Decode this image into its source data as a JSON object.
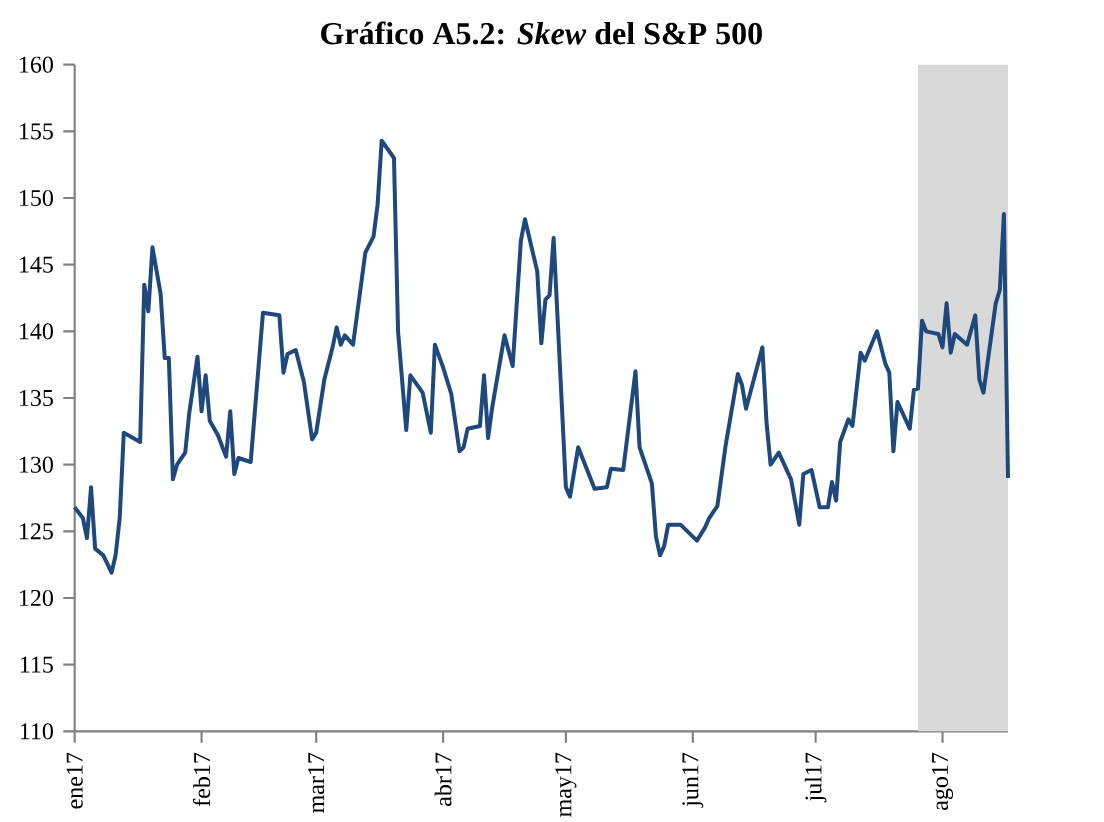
{
  "chart_data": {
    "type": "line",
    "title": "Gráfico A5.2: *Skew* del S&P 500",
    "x": [
      "2017-01-01",
      "2017-01-03",
      "2017-01-04",
      "2017-01-05",
      "2017-01-06",
      "2017-01-08",
      "2017-01-10",
      "2017-01-11",
      "2017-01-12",
      "2017-01-13",
      "2017-01-17",
      "2017-01-18",
      "2017-01-19",
      "2017-01-20",
      "2017-01-22",
      "2017-01-23",
      "2017-01-24",
      "2017-01-25",
      "2017-01-26",
      "2017-01-28",
      "2017-01-29",
      "2017-01-31",
      "2017-02-01",
      "2017-02-02",
      "2017-02-03",
      "2017-02-05",
      "2017-02-07",
      "2017-02-08",
      "2017-02-09",
      "2017-02-10",
      "2017-02-13",
      "2017-02-16",
      "2017-02-20",
      "2017-02-21",
      "2017-02-22",
      "2017-02-24",
      "2017-02-26",
      "2017-02-28",
      "2017-03-01",
      "2017-03-03",
      "2017-03-05",
      "2017-03-06",
      "2017-03-07",
      "2017-03-08",
      "2017-03-10",
      "2017-03-13",
      "2017-03-15",
      "2017-03-16",
      "2017-03-17",
      "2017-03-20",
      "2017-03-21",
      "2017-03-23",
      "2017-03-24",
      "2017-03-27",
      "2017-03-29",
      "2017-03-30",
      "2017-04-01",
      "2017-04-03",
      "2017-04-05",
      "2017-04-06",
      "2017-04-07",
      "2017-04-10",
      "2017-04-11",
      "2017-04-12",
      "2017-04-13",
      "2017-04-16",
      "2017-04-18",
      "2017-04-20",
      "2017-04-21",
      "2017-04-24",
      "2017-04-25",
      "2017-04-26",
      "2017-04-27",
      "2017-04-28",
      "2017-05-01",
      "2017-05-02",
      "2017-05-04",
      "2017-05-08",
      "2017-05-11",
      "2017-05-12",
      "2017-05-15",
      "2017-05-18",
      "2017-05-19",
      "2017-05-22",
      "2017-05-23",
      "2017-05-24",
      "2017-05-25",
      "2017-05-26",
      "2017-05-28",
      "2017-05-29",
      "2017-06-02",
      "2017-06-04",
      "2017-06-05",
      "2017-06-07",
      "2017-06-09",
      "2017-06-12",
      "2017-06-13",
      "2017-06-14",
      "2017-06-18",
      "2017-06-19",
      "2017-06-20",
      "2017-06-22",
      "2017-06-25",
      "2017-06-27",
      "2017-06-28",
      "2017-06-30",
      "2017-07-02",
      "2017-07-04",
      "2017-07-05",
      "2017-07-06",
      "2017-07-07",
      "2017-07-09",
      "2017-07-10",
      "2017-07-12",
      "2017-07-13",
      "2017-07-16",
      "2017-07-18",
      "2017-07-19",
      "2017-07-20",
      "2017-07-21",
      "2017-07-24",
      "2017-07-25",
      "2017-07-26",
      "2017-07-27",
      "2017-07-28",
      "2017-07-31",
      "2017-08-01",
      "2017-08-02",
      "2017-08-03",
      "2017-08-04",
      "2017-08-07",
      "2017-08-09",
      "2017-08-10",
      "2017-08-11",
      "2017-08-14",
      "2017-08-15",
      "2017-08-16",
      "2017-08-17"
    ],
    "series": [
      {
        "color": "#1f497d",
        "values": [
          126.8,
          126,
          124.5,
          128.3,
          123.7,
          123.2,
          121.9,
          123.2,
          126,
          132.4,
          131.7,
          143.5,
          141.5,
          146.3,
          142.8,
          138,
          138,
          128.9,
          130,
          130.9,
          133.9,
          138.1,
          134,
          136.7,
          133.3,
          132.2,
          130.6,
          134,
          129.3,
          130.5,
          130.2,
          141.4,
          141.2,
          136.9,
          138.3,
          138.6,
          136.2,
          131.9,
          132.4,
          136.4,
          138.8,
          140.3,
          139,
          139.7,
          139,
          145.9,
          147.1,
          149.5,
          154.3,
          153,
          140,
          132.6,
          136.7,
          135.4,
          132.4,
          139,
          137.3,
          135.3,
          131,
          131.3,
          132.7,
          132.9,
          136.7,
          132,
          134.3,
          139.7,
          137.4,
          146.8,
          148.4,
          144.5,
          139.1,
          142.4,
          142.7,
          147,
          128.3,
          127.6,
          131.3,
          128.2,
          128.3,
          129.7,
          129.6,
          137,
          131.3,
          128.6,
          124.6,
          123.2,
          123.9,
          125.5,
          125.5,
          125.5,
          124.3,
          125.3,
          126,
          126.9,
          131.4,
          136.8,
          136,
          134.2,
          138.8,
          133.2,
          130,
          130.9,
          128.9,
          125.5,
          129.3,
          129.6,
          126.8,
          126.8,
          128.7,
          127.3,
          131.7,
          133.4,
          132.9,
          138.4,
          137.8,
          140,
          137.6,
          136.9,
          131,
          134.7,
          132.7,
          135.6,
          135.7,
          140.8,
          140,
          139.8,
          138.8,
          142.1,
          138.4,
          139.8,
          139,
          141.2,
          136.4,
          135.4,
          142.1,
          143.1,
          148.8,
          129
        ]
      }
    ],
    "xlim": [
      "2017-01-01",
      "2017-08-17"
    ],
    "xticks": [
      {
        "value": "2017-01-01",
        "label": "ene17"
      },
      {
        "value": "2017-02-01",
        "label": "feb17"
      },
      {
        "value": "2017-03-01",
        "label": "mar17"
      },
      {
        "value": "2017-04-01",
        "label": "abr17"
      },
      {
        "value": "2017-05-01",
        "label": "may17"
      },
      {
        "value": "2017-06-01",
        "label": "jun17"
      },
      {
        "value": "2017-07-01",
        "label": "jul17"
      },
      {
        "value": "2017-08-01",
        "label": "ago17"
      }
    ],
    "ylim": [
      110,
      160
    ],
    "yticks": [
      110,
      115,
      120,
      125,
      130,
      135,
      140,
      145,
      150,
      155,
      160
    ],
    "bands": [
      {
        "axis": "x",
        "from": "2017-07-26",
        "to": "2017-08-17",
        "color": "#d9d9d9"
      }
    ],
    "grid": false,
    "legend": false,
    "marker": "none",
    "line_style": "solid"
  }
}
